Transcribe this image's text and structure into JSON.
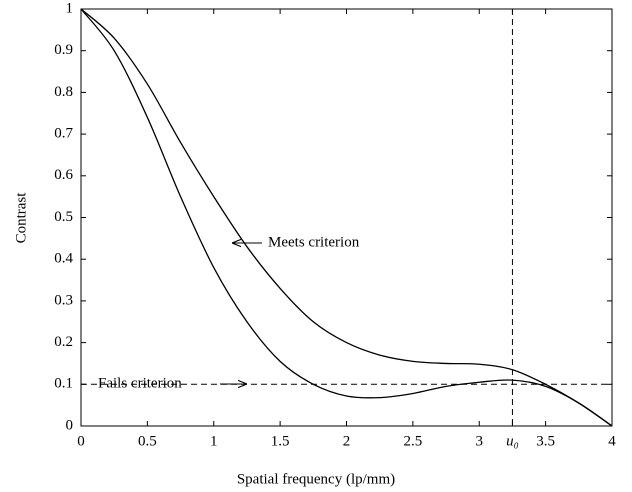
{
  "chart_data": {
    "type": "line",
    "xlabel": "Spatial frequency (lp/mm)",
    "ylabel": "Contrast",
    "x": [
      0,
      0.25,
      0.5,
      0.75,
      1,
      1.25,
      1.5,
      1.75,
      2,
      2.25,
      2.5,
      2.75,
      3,
      3.25,
      3.5,
      3.75,
      4
    ],
    "series": [
      {
        "color": "#000000",
        "values": [
          1,
          0.93,
          0.82,
          0.68,
          0.55,
          0.43,
          0.33,
          0.25,
          0.2,
          0.17,
          0.155,
          0.15,
          0.148,
          0.135,
          0.1,
          0.055,
          0
        ]
      },
      {
        "color": "#000000",
        "values": [
          1,
          0.9,
          0.74,
          0.55,
          0.38,
          0.25,
          0.155,
          0.1,
          0.072,
          0.068,
          0.078,
          0.095,
          0.105,
          0.11,
          0.095,
          0.055,
          0
        ]
      }
    ],
    "xlim": [
      0,
      4
    ],
    "ylim": [
      0,
      1
    ],
    "xticks": [
      0,
      0.5,
      1,
      1.5,
      2,
      2.5,
      3,
      {
        "value": 3.25,
        "label": "u₀"
      },
      3.5,
      4
    ],
    "yticks": [
      0,
      0.1,
      0.2,
      0.3,
      0.4,
      0.5,
      0.6,
      0.7,
      0.8,
      0.9,
      1
    ],
    "hline": 0.1,
    "vline": 3.25,
    "annotations": [
      "Meets criterion",
      "Fails criterion"
    ]
  }
}
